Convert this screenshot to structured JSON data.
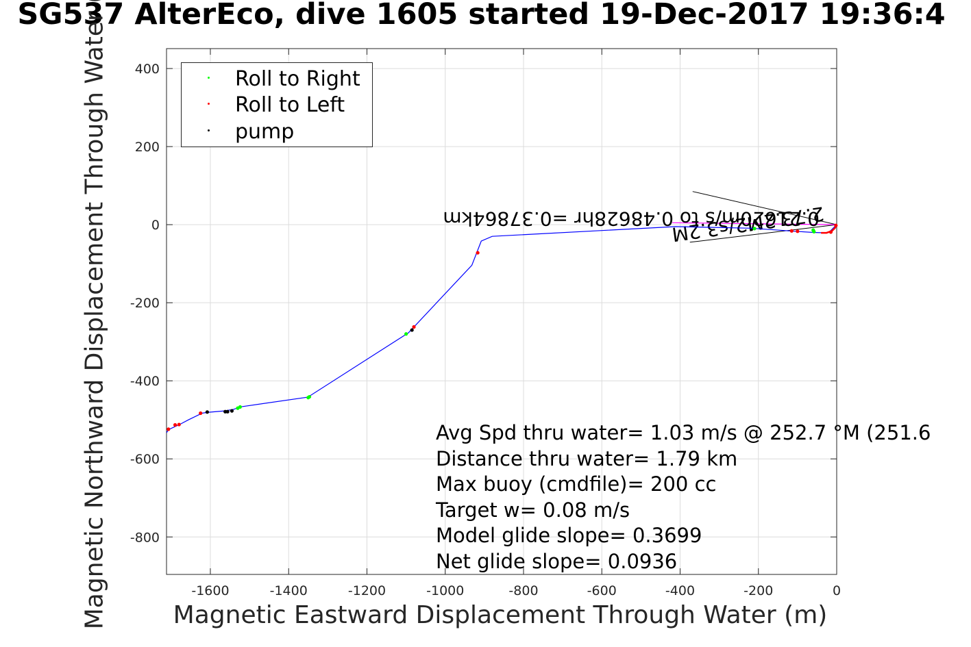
{
  "chart_data": {
    "type": "scatter",
    "title": "SG537 AlterEco, dive 1605 started 19-Dec-2017 19:36:4",
    "xlabel": "Magnetic Eastward Displacement Through Water (m)",
    "ylabel": "Magnetic Northward Displacement Through Water (",
    "xlim": [
      -1712,
      0
    ],
    "ylim": [
      -896,
      451
    ],
    "grid": true,
    "xticks": [
      -1600,
      -1400,
      -1200,
      -1000,
      -800,
      -600,
      -400,
      -200,
      0
    ],
    "yticks": [
      400,
      200,
      0,
      -200,
      -400,
      -600,
      -800
    ],
    "xtick_labels": [
      "-1600",
      "-1400",
      "-1200",
      "-1000",
      "-800",
      "-600",
      "-400",
      "-200",
      "0"
    ],
    "ytick_labels": [
      "400",
      "200",
      "0",
      "-200",
      "-400",
      "-600",
      "-800"
    ],
    "legend": {
      "placement": "top-left",
      "entries": [
        {
          "label": "Roll to Right",
          "color": "#00ff00"
        },
        {
          "label": "Roll to Left",
          "color": "#ff0000"
        },
        {
          "label": "pump",
          "color": "#000000"
        }
      ]
    },
    "series": [
      {
        "name": "track",
        "color": "#0000ff",
        "x": [
          0,
          -8,
          -18,
          -26,
          -60,
          -120,
          -219,
          -412,
          -880,
          -908,
          -932,
          -1094,
          -1351,
          -1525,
          -1540,
          -1563,
          -1609,
          -1621,
          -1656,
          -1679,
          -1707,
          -1712
        ],
        "y": [
          0,
          -8,
          -18,
          -21,
          -20,
          -16,
          -9,
          -5,
          -30,
          -42,
          -104,
          -277,
          -442,
          -467,
          -473,
          -477,
          -481,
          -483,
          -500,
          -512,
          -525,
          -533
        ]
      },
      {
        "name": "Roll to Right",
        "color": "#00ff00",
        "x": [
          -60,
          -58,
          -210,
          -1100,
          -1350,
          -1347,
          -1530,
          -1524
        ],
        "y": [
          -14,
          -18,
          -10,
          -280,
          -443,
          -441,
          -470,
          -467
        ]
      },
      {
        "name": "Roll to Left",
        "color": "#ff0000",
        "x": [
          -2,
          -15,
          -100,
          -115,
          -917,
          -1080,
          -1625,
          -1680,
          -1690,
          -1707
        ],
        "y": [
          -2,
          -19,
          -17,
          -16,
          -72,
          -262,
          -483,
          -512,
          -513,
          -524
        ],
        "marker": "small"
      },
      {
        "name": "pump",
        "color": "#000000",
        "x": [
          -1085,
          -1608,
          -1562,
          -1556,
          -1545
        ],
        "y": [
          -270,
          -480,
          -479,
          -479,
          -477
        ]
      }
    ],
    "annotations": {
      "heading_line": {
        "color": "#ff00ff",
        "x": [
          0,
          -420
        ],
        "y": [
          0,
          5
        ]
      },
      "cone_lines": [
        {
          "color": "#000000",
          "x": [
            0,
            -368
          ],
          "y": [
            0,
            85
          ]
        },
        {
          "color": "#000000",
          "x": [
            0,
            -375
          ],
          "y": [
            0,
            -45
          ]
        }
      ],
      "flipped_text": [
        "0.21620m/s to 0.48628hr =0.37864km",
        "2.73.2M2/s3.2M"
      ],
      "stats_lines": [
        "Avg Spd thru water=  1.03 m/s @ 252.7 °M (251.6",
        "Distance thru water=  1.79 km",
        "Max buoy (cmdfile)= 200 cc",
        "Target w= 0.08 m/s",
        "Model glide slope= 0.3699",
        "Net glide slope= 0.0936"
      ]
    }
  }
}
